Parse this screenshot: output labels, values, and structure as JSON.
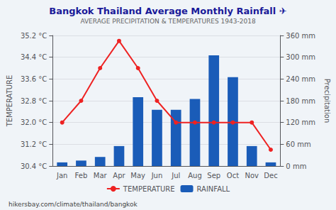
{
  "chart_data": {
    "type": "bar",
    "title": "Bangkok Thailand Average Monthly Rainfall ✈",
    "subtitle": "AVERAGE PRECIPITATION & TEMPERATURES 1943-2018",
    "categories": [
      "Jan",
      "Feb",
      "Mar",
      "Apr",
      "May",
      "Jun",
      "Jul",
      "Aug",
      "Sep",
      "Oct",
      "Nov",
      "Dec"
    ],
    "series": [
      {
        "name": "TEMPERATURE",
        "type": "line",
        "marker": "circle",
        "color": "#ee2222",
        "values": [
          32.0,
          32.8,
          34.0,
          35.0,
          34.0,
          32.8,
          32.0,
          32.0,
          32.0,
          32.0,
          32.0,
          31.0
        ]
      },
      {
        "name": "RAINFALL",
        "type": "bar",
        "axis": "y2",
        "color": "#1a5cb8",
        "values": [
          10,
          15,
          25,
          55,
          190,
          155,
          155,
          185,
          305,
          245,
          55,
          10
        ]
      }
    ],
    "y_label": "TEMPERATURE",
    "y2_label": "Precipitation",
    "ylim": [
      30.4,
      35.2
    ],
    "yticks": [
      {
        "value": 30.4,
        "label": "30.4 °C"
      },
      {
        "value": 31.2,
        "label": "31.2 °C"
      },
      {
        "value": 32.0,
        "label": "32.0 °C"
      },
      {
        "value": 32.8,
        "label": "32.8 °C"
      },
      {
        "value": 33.6,
        "label": "33.6 °C"
      },
      {
        "value": 34.4,
        "label": "34.4 °C"
      },
      {
        "value": 35.2,
        "label": "35.2 °C"
      }
    ],
    "y2lim": [
      0,
      360
    ],
    "y2ticks": [
      {
        "value": 0,
        "label": "0 mm"
      },
      {
        "value": 60,
        "label": "60 mm"
      },
      {
        "value": 120,
        "label": "120 mm"
      },
      {
        "value": 180,
        "label": "180 mm"
      },
      {
        "value": 240,
        "label": "240 mm"
      },
      {
        "value": 300,
        "label": "300 mm"
      },
      {
        "value": 360,
        "label": "360 mm"
      }
    ],
    "grid": true,
    "legend": "bottom",
    "annotations": [
      "hikersbay.com/climate/thailand/bangkok"
    ]
  }
}
